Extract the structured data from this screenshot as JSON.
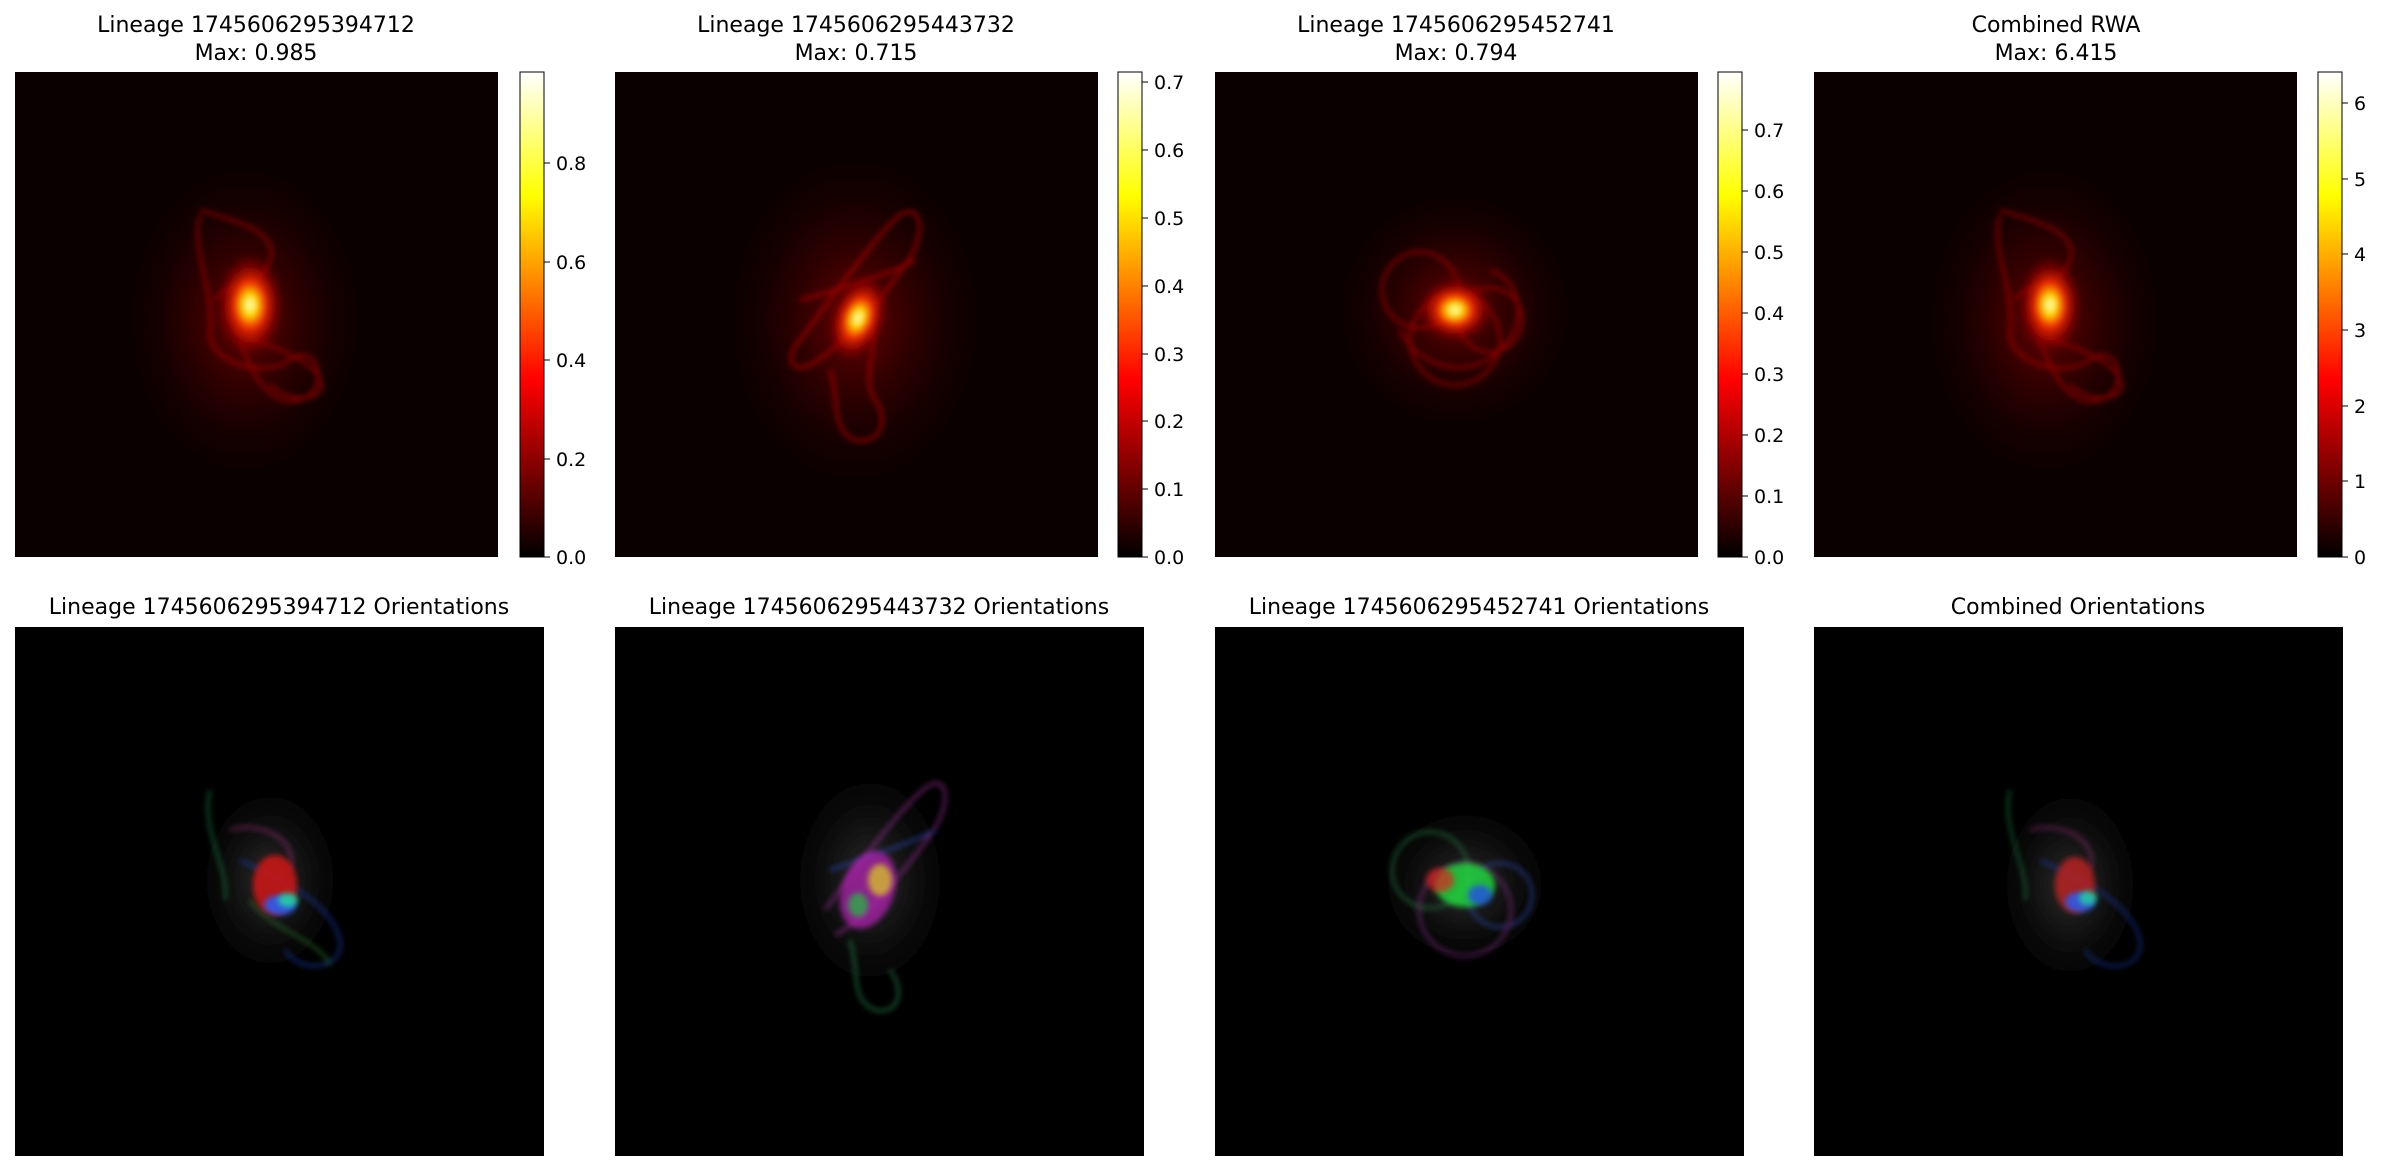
{
  "chart_data": [
    {
      "type": "heatmap",
      "title": "Lineage 1745606295394712",
      "subtitle": "Max: 0.985",
      "colormap": "hot",
      "vmin": 0.0,
      "vmax": 0.985,
      "colorbar_ticks": [
        "0.0",
        "0.2",
        "0.4",
        "0.6",
        "0.8"
      ],
      "colorbar_tick_values": [
        0.0,
        0.2,
        0.4,
        0.6,
        0.8
      ],
      "axes_visible": false
    },
    {
      "type": "heatmap",
      "title": "Lineage 1745606295443732",
      "subtitle": "Max: 0.715",
      "colormap": "hot",
      "vmin": 0.0,
      "vmax": 0.715,
      "colorbar_ticks": [
        "0.0",
        "0.1",
        "0.2",
        "0.3",
        "0.4",
        "0.5",
        "0.6",
        "0.7"
      ],
      "colorbar_tick_values": [
        0.0,
        0.1,
        0.2,
        0.3,
        0.4,
        0.5,
        0.6,
        0.7
      ],
      "axes_visible": false
    },
    {
      "type": "heatmap",
      "title": "Lineage 1745606295452741",
      "subtitle": "Max: 0.794",
      "colormap": "hot",
      "vmin": 0.0,
      "vmax": 0.794,
      "colorbar_ticks": [
        "0.0",
        "0.1",
        "0.2",
        "0.3",
        "0.4",
        "0.5",
        "0.6",
        "0.7"
      ],
      "colorbar_tick_values": [
        0.0,
        0.1,
        0.2,
        0.3,
        0.4,
        0.5,
        0.6,
        0.7
      ],
      "axes_visible": false
    },
    {
      "type": "heatmap",
      "title": "Combined RWA",
      "subtitle": "Max: 6.415",
      "colormap": "hot",
      "vmin": 0,
      "vmax": 6.415,
      "colorbar_ticks": [
        "0",
        "1",
        "2",
        "3",
        "4",
        "5",
        "6"
      ],
      "colorbar_tick_values": [
        0,
        1,
        2,
        3,
        4,
        5,
        6
      ],
      "axes_visible": false
    },
    {
      "type": "heatmap",
      "title": "Lineage 1745606295394712 Orientations",
      "colormap": "rgb-orientation",
      "axes_visible": false
    },
    {
      "type": "heatmap",
      "title": "Lineage 1745606295443732 Orientations",
      "colormap": "rgb-orientation",
      "axes_visible": false
    },
    {
      "type": "heatmap",
      "title": "Lineage 1745606295452741 Orientations",
      "colormap": "rgb-orientation",
      "axes_visible": false
    },
    {
      "type": "heatmap",
      "title": "Combined Orientations",
      "colormap": "rgb-orientation",
      "axes_visible": false
    }
  ],
  "colors": {
    "background": "#ffffff",
    "heatmap_floor": "#0b0000",
    "orientation_floor": "#000000",
    "hot_stops": [
      "#0b0000",
      "#ff0000",
      "#ffff00",
      "#ffffff"
    ]
  }
}
